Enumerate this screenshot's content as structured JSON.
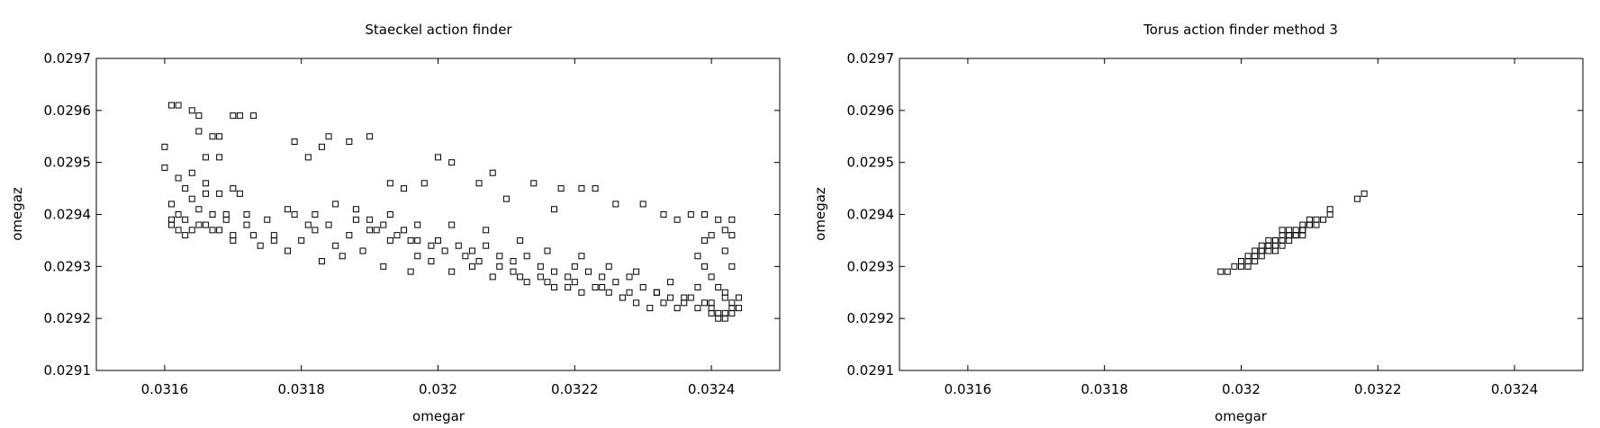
{
  "chart_data": [
    {
      "type": "scatter",
      "title": "Staeckel action finder",
      "xlabel": "omegar",
      "ylabel": "omegaz",
      "xlim": [
        0.0315,
        0.0325
      ],
      "ylim": [
        0.0291,
        0.0297
      ],
      "xticks": [
        "0.0316",
        "0.0318",
        "0.032",
        "0.0322",
        "0.0324"
      ],
      "yticks": [
        "0.0291",
        "0.0292",
        "0.0293",
        "0.0294",
        "0.0295",
        "0.0296",
        "0.0297"
      ],
      "grid": false,
      "marker": "open-square",
      "points": [
        [
          0.03161,
          0.02961
        ],
        [
          0.03162,
          0.02961
        ],
        [
          0.03164,
          0.0296
        ],
        [
          0.03165,
          0.02959
        ],
        [
          0.0317,
          0.02959
        ],
        [
          0.03171,
          0.02959
        ],
        [
          0.03173,
          0.02959
        ],
        [
          0.0316,
          0.02953
        ],
        [
          0.03165,
          0.02956
        ],
        [
          0.03167,
          0.02955
        ],
        [
          0.03168,
          0.02955
        ],
        [
          0.03162,
          0.02947
        ],
        [
          0.03164,
          0.02948
        ],
        [
          0.03166,
          0.02951
        ],
        [
          0.03168,
          0.02951
        ],
        [
          0.0316,
          0.02949
        ],
        [
          0.03163,
          0.02945
        ],
        [
          0.03166,
          0.02946
        ],
        [
          0.03161,
          0.02942
        ],
        [
          0.03164,
          0.02943
        ],
        [
          0.03166,
          0.02944
        ],
        [
          0.03168,
          0.02944
        ],
        [
          0.0317,
          0.02945
        ],
        [
          0.03171,
          0.02944
        ],
        [
          0.03162,
          0.0294
        ],
        [
          0.03165,
          0.02941
        ],
        [
          0.03167,
          0.0294
        ],
        [
          0.03169,
          0.0294
        ],
        [
          0.03161,
          0.02938
        ],
        [
          0.03163,
          0.02939
        ],
        [
          0.03165,
          0.02938
        ],
        [
          0.03168,
          0.02937
        ],
        [
          0.0317,
          0.02936
        ],
        [
          0.03173,
          0.02936
        ],
        [
          0.03176,
          0.02935
        ],
        [
          0.03179,
          0.0294
        ],
        [
          0.03181,
          0.02938
        ],
        [
          0.03182,
          0.02937
        ],
        [
          0.03185,
          0.02934
        ],
        [
          0.03188,
          0.02939
        ],
        [
          0.0319,
          0.02937
        ],
        [
          0.03193,
          0.02935
        ],
        [
          0.03197,
          0.02932
        ],
        [
          0.03179,
          0.02954
        ],
        [
          0.03181,
          0.02951
        ],
        [
          0.03183,
          0.02953
        ],
        [
          0.03184,
          0.02955
        ],
        [
          0.03187,
          0.02954
        ],
        [
          0.0319,
          0.02955
        ],
        [
          0.03193,
          0.02946
        ],
        [
          0.03195,
          0.02945
        ],
        [
          0.03198,
          0.02946
        ],
        [
          0.032,
          0.02951
        ],
        [
          0.03202,
          0.0295
        ],
        [
          0.03206,
          0.02946
        ],
        [
          0.03208,
          0.02948
        ],
        [
          0.0321,
          0.02943
        ],
        [
          0.03214,
          0.02946
        ],
        [
          0.03217,
          0.02941
        ],
        [
          0.03218,
          0.02945
        ],
        [
          0.03221,
          0.02945
        ],
        [
          0.03223,
          0.02945
        ],
        [
          0.03226,
          0.02942
        ],
        [
          0.0323,
          0.02942
        ],
        [
          0.03233,
          0.0294
        ],
        [
          0.03235,
          0.02939
        ],
        [
          0.03237,
          0.0294
        ],
        [
          0.03239,
          0.0294
        ],
        [
          0.03241,
          0.02939
        ],
        [
          0.03242,
          0.02937
        ],
        [
          0.03185,
          0.02942
        ],
        [
          0.03188,
          0.02941
        ],
        [
          0.0319,
          0.02939
        ],
        [
          0.03192,
          0.02938
        ],
        [
          0.03195,
          0.02937
        ],
        [
          0.03197,
          0.02935
        ],
        [
          0.032,
          0.02935
        ],
        [
          0.03203,
          0.02934
        ],
        [
          0.03205,
          0.02933
        ],
        [
          0.03207,
          0.02934
        ],
        [
          0.03209,
          0.02932
        ],
        [
          0.03211,
          0.02931
        ],
        [
          0.03213,
          0.02932
        ],
        [
          0.03215,
          0.0293
        ],
        [
          0.03217,
          0.02929
        ],
        [
          0.03219,
          0.02928
        ],
        [
          0.0322,
          0.0293
        ],
        [
          0.03222,
          0.02929
        ],
        [
          0.03224,
          0.02928
        ],
        [
          0.03226,
          0.02927
        ],
        [
          0.03228,
          0.02928
        ],
        [
          0.0323,
          0.02926
        ],
        [
          0.03232,
          0.02925
        ],
        [
          0.03234,
          0.02924
        ],
        [
          0.03236,
          0.02923
        ],
        [
          0.03238,
          0.02922
        ],
        [
          0.0324,
          0.02922
        ],
        [
          0.03241,
          0.02921
        ],
        [
          0.03242,
          0.0292
        ],
        [
          0.03243,
          0.02921
        ],
        [
          0.03243,
          0.02923
        ],
        [
          0.03242,
          0.02924
        ],
        [
          0.03241,
          0.02926
        ],
        [
          0.0324,
          0.02928
        ],
        [
          0.03239,
          0.0293
        ],
        [
          0.03238,
          0.02932
        ],
        [
          0.03239,
          0.02935
        ],
        [
          0.0324,
          0.02936
        ],
        [
          0.03243,
          0.02939
        ],
        [
          0.03243,
          0.02936
        ],
        [
          0.03242,
          0.02933
        ],
        [
          0.03243,
          0.0293
        ],
        [
          0.0317,
          0.02935
        ],
        [
          0.03172,
          0.02938
        ],
        [
          0.03174,
          0.02934
        ],
        [
          0.03176,
          0.02936
        ],
        [
          0.03178,
          0.02933
        ],
        [
          0.0318,
          0.02935
        ],
        [
          0.03183,
          0.02931
        ],
        [
          0.03186,
          0.02932
        ],
        [
          0.03189,
          0.02933
        ],
        [
          0.03192,
          0.0293
        ],
        [
          0.03196,
          0.02929
        ],
        [
          0.03199,
          0.02931
        ],
        [
          0.03202,
          0.02929
        ],
        [
          0.03205,
          0.0293
        ],
        [
          0.03208,
          0.02928
        ],
        [
          0.03212,
          0.02928
        ],
        [
          0.03216,
          0.02927
        ],
        [
          0.0322,
          0.02927
        ],
        [
          0.03224,
          0.02926
        ],
        [
          0.03228,
          0.02925
        ],
        [
          0.03232,
          0.02925
        ],
        [
          0.03236,
          0.02924
        ],
        [
          0.0324,
          0.02923
        ],
        [
          0.03242,
          0.02925
        ],
        [
          0.03238,
          0.02926
        ],
        [
          0.03234,
          0.02927
        ],
        [
          0.03229,
          0.02929
        ],
        [
          0.03225,
          0.0293
        ],
        [
          0.03221,
          0.02932
        ],
        [
          0.03216,
          0.02933
        ],
        [
          0.03212,
          0.02935
        ],
        [
          0.03207,
          0.02937
        ],
        [
          0.03202,
          0.02938
        ],
        [
          0.03197,
          0.02938
        ],
        [
          0.03193,
          0.0294
        ],
        [
          0.03241,
          0.0292
        ],
        [
          0.03242,
          0.02921
        ],
        [
          0.03243,
          0.02922
        ],
        [
          0.03244,
          0.02924
        ],
        [
          0.03244,
          0.02922
        ],
        [
          0.0324,
          0.02921
        ],
        [
          0.03239,
          0.02923
        ],
        [
          0.03237,
          0.02924
        ],
        [
          0.03235,
          0.02922
        ],
        [
          0.03233,
          0.02923
        ],
        [
          0.03231,
          0.02922
        ],
        [
          0.03229,
          0.02923
        ],
        [
          0.03227,
          0.02924
        ],
        [
          0.03225,
          0.02925
        ],
        [
          0.03223,
          0.02926
        ],
        [
          0.03221,
          0.02925
        ],
        [
          0.03219,
          0.02926
        ],
        [
          0.03217,
          0.02926
        ],
        [
          0.03215,
          0.02928
        ],
        [
          0.03213,
          0.02927
        ],
        [
          0.03211,
          0.02929
        ],
        [
          0.03209,
          0.0293
        ],
        [
          0.03206,
          0.02931
        ],
        [
          0.03204,
          0.02932
        ],
        [
          0.03201,
          0.02933
        ],
        [
          0.03199,
          0.02934
        ],
        [
          0.03196,
          0.02935
        ],
        [
          0.03194,
          0.02936
        ],
        [
          0.03191,
          0.02937
        ],
        [
          0.03187,
          0.02936
        ],
        [
          0.03184,
          0.02938
        ],
        [
          0.03182,
          0.0294
        ],
        [
          0.03178,
          0.02941
        ],
        [
          0.03175,
          0.02939
        ],
        [
          0.03172,
          0.0294
        ],
        [
          0.03169,
          0.02939
        ],
        [
          0.03167,
          0.02937
        ],
        [
          0.03164,
          0.02937
        ],
        [
          0.03162,
          0.02937
        ],
        [
          0.03161,
          0.02939
        ],
        [
          0.03163,
          0.02936
        ],
        [
          0.03166,
          0.02938
        ]
      ]
    },
    {
      "type": "scatter",
      "title": "Torus action finder method 3",
      "xlabel": "omegar",
      "ylabel": "omegaz",
      "xlim": [
        0.0315,
        0.0325
      ],
      "ylim": [
        0.0291,
        0.0297
      ],
      "xticks": [
        "0.0316",
        "0.0318",
        "0.032",
        "0.0322",
        "0.0324"
      ],
      "yticks": [
        "0.0291",
        "0.0292",
        "0.0293",
        "0.0294",
        "0.0295",
        "0.0296",
        "0.0297"
      ],
      "grid": false,
      "marker": "open-square",
      "points": [
        [
          0.03197,
          0.02929
        ],
        [
          0.03198,
          0.02929
        ],
        [
          0.03199,
          0.0293
        ],
        [
          0.032,
          0.0293
        ],
        [
          0.032,
          0.02931
        ],
        [
          0.03201,
          0.02931
        ],
        [
          0.03201,
          0.02932
        ],
        [
          0.03202,
          0.02932
        ],
        [
          0.03202,
          0.02933
        ],
        [
          0.03203,
          0.02933
        ],
        [
          0.03203,
          0.02933
        ],
        [
          0.03204,
          0.02934
        ],
        [
          0.03204,
          0.02934
        ],
        [
          0.03205,
          0.02934
        ],
        [
          0.03205,
          0.02935
        ],
        [
          0.03206,
          0.02935
        ],
        [
          0.03206,
          0.02935
        ],
        [
          0.03207,
          0.02936
        ],
        [
          0.03207,
          0.02936
        ],
        [
          0.03208,
          0.02936
        ],
        [
          0.03208,
          0.02937
        ],
        [
          0.03209,
          0.02937
        ],
        [
          0.03209,
          0.02938
        ],
        [
          0.0321,
          0.02938
        ],
        [
          0.0321,
          0.02938
        ],
        [
          0.03211,
          0.02939
        ],
        [
          0.03212,
          0.02939
        ],
        [
          0.03213,
          0.0294
        ],
        [
          0.03213,
          0.02941
        ],
        [
          0.03203,
          0.02934
        ],
        [
          0.03204,
          0.02933
        ],
        [
          0.03205,
          0.02935
        ],
        [
          0.03206,
          0.02934
        ],
        [
          0.03207,
          0.02937
        ],
        [
          0.03208,
          0.02936
        ],
        [
          0.03202,
          0.02931
        ],
        [
          0.03203,
          0.02932
        ],
        [
          0.03205,
          0.02933
        ],
        [
          0.03206,
          0.02936
        ],
        [
          0.03209,
          0.02936
        ],
        [
          0.03211,
          0.02938
        ],
        [
          0.03204,
          0.02935
        ],
        [
          0.03206,
          0.02937
        ],
        [
          0.03207,
          0.02935
        ],
        [
          0.03209,
          0.02937
        ],
        [
          0.0321,
          0.02939
        ],
        [
          0.03218,
          0.02944
        ],
        [
          0.03217,
          0.02943
        ],
        [
          0.03201,
          0.0293
        ],
        [
          0.032,
          0.02931
        ]
      ]
    }
  ]
}
